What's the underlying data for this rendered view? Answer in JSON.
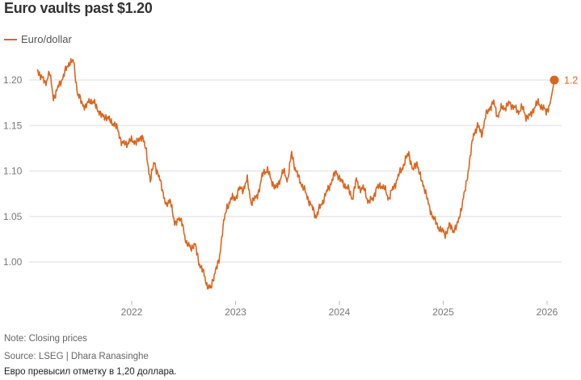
{
  "title": "Euro vaults past $1.20",
  "legend": "Euro/dollar",
  "colors": {
    "line": "#d9661f",
    "grid": "#dddddd",
    "tick": "#777777"
  },
  "chart_data": {
    "type": "line",
    "series_name": "Euro/dollar",
    "x_start": 2021.09,
    "x_end": 2026.07,
    "ylim": [
      0.96,
      1.225
    ],
    "xlim": [
      2021.0,
      2026.15
    ],
    "yticks": [
      1.0,
      1.05,
      1.1,
      1.15,
      1.2
    ],
    "ytick_labels": [
      "1.00",
      "1.05",
      "1.10",
      "1.15",
      "1.20"
    ],
    "xticks": [
      2022,
      2023,
      2024,
      2025,
      2026
    ],
    "xtick_labels": [
      "2022",
      "2023",
      "2024",
      "2025",
      "2026"
    ],
    "end_label": "1.2",
    "end_value": 1.2,
    "values": [
      1.21,
      1.205,
      1.195,
      1.21,
      1.18,
      1.19,
      1.2,
      1.21,
      1.22,
      1.22,
      1.185,
      1.175,
      1.17,
      1.178,
      1.175,
      1.168,
      1.16,
      1.16,
      1.155,
      1.152,
      1.145,
      1.13,
      1.13,
      1.133,
      1.133,
      1.132,
      1.14,
      1.12,
      1.09,
      1.11,
      1.095,
      1.08,
      1.06,
      1.07,
      1.04,
      1.05,
      1.04,
      1.02,
      1.015,
      1.02,
      1.0,
      0.99,
      0.975,
      0.97,
      0.99,
      1.0,
      1.04,
      1.06,
      1.07,
      1.07,
      1.08,
      1.08,
      1.09,
      1.065,
      1.07,
      1.08,
      1.1,
      1.1,
      1.09,
      1.08,
      1.09,
      1.1,
      1.09,
      1.12,
      1.1,
      1.09,
      1.08,
      1.07,
      1.06,
      1.05,
      1.06,
      1.07,
      1.08,
      1.09,
      1.1,
      1.09,
      1.085,
      1.08,
      1.07,
      1.09,
      1.08,
      1.08,
      1.065,
      1.07,
      1.08,
      1.085,
      1.08,
      1.07,
      1.08,
      1.09,
      1.1,
      1.11,
      1.12,
      1.1,
      1.11,
      1.09,
      1.08,
      1.06,
      1.05,
      1.04,
      1.035,
      1.03,
      1.04,
      1.035,
      1.04,
      1.06,
      1.08,
      1.11,
      1.14,
      1.15,
      1.14,
      1.16,
      1.17,
      1.175,
      1.16,
      1.17,
      1.17,
      1.175,
      1.17,
      1.165,
      1.17,
      1.16,
      1.16,
      1.17,
      1.175,
      1.17,
      1.165,
      1.175,
      1.2
    ],
    "note": "Note: Closing prices",
    "source": "Source: LSEG | Dhara Ranasinghe"
  },
  "caption": "Евро превысил отметку в 1,20 доллара."
}
